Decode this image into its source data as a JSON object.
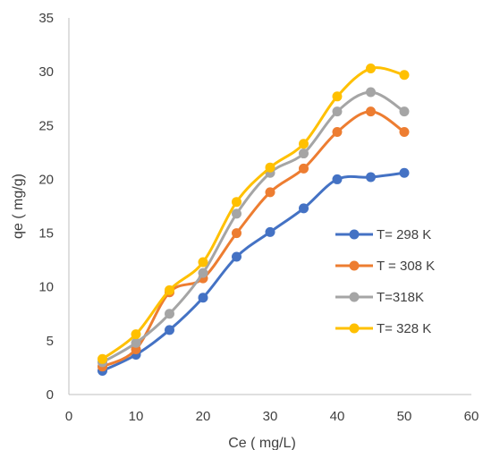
{
  "chart_data": {
    "type": "line",
    "title": "",
    "xlabel": "Ce ( mg/L)",
    "ylabel": "qe ( mg/g)",
    "xlim": [
      0,
      60
    ],
    "ylim": [
      0,
      35
    ],
    "xticks": [
      0,
      10,
      20,
      30,
      40,
      50,
      60
    ],
    "yticks": [
      0,
      5,
      10,
      15,
      20,
      25,
      30,
      35
    ],
    "grid": false,
    "smooth": true,
    "legend_position": "right",
    "x": [
      5,
      10,
      15,
      20,
      25,
      30,
      35,
      40,
      45,
      50
    ],
    "series": [
      {
        "name": "T= 298 K",
        "color": "#4472C4",
        "values": [
          2.2,
          3.7,
          6.0,
          9.0,
          12.8,
          15.1,
          17.3,
          20.0,
          20.2,
          20.6
        ]
      },
      {
        "name": "T = 308 K",
        "color": "#ED7D31",
        "values": [
          2.6,
          4.2,
          9.5,
          10.8,
          15.0,
          18.8,
          21.0,
          24.4,
          26.3,
          24.4
        ]
      },
      {
        "name": "T=318K",
        "color": "#A5A5A5",
        "values": [
          3.0,
          4.8,
          7.5,
          11.3,
          16.8,
          20.6,
          22.4,
          26.3,
          28.1,
          26.3
        ]
      },
      {
        "name": "T= 328 K",
        "color": "#FFC000",
        "values": [
          3.3,
          5.6,
          9.7,
          12.3,
          17.9,
          21.1,
          23.3,
          27.7,
          30.3,
          29.7
        ]
      }
    ]
  }
}
